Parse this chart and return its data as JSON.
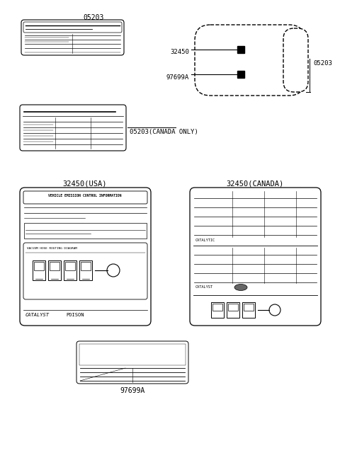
{
  "background_color": "#ffffff",
  "line_color": "#000000",
  "text_color": "#000000",
  "fig_width": 4.8,
  "fig_height": 6.57,
  "dpi": 100,
  "labels": {
    "05203_top": "05203",
    "05203_canada": "05203(CANADA ONLY)",
    "32450_usa": "32450(USA)",
    "32450_canada": "32450(CANADA)",
    "97699A_bottom": "97699A",
    "32450_car": "32450",
    "97699A_car": "97699A",
    "05203_car": "05203"
  }
}
